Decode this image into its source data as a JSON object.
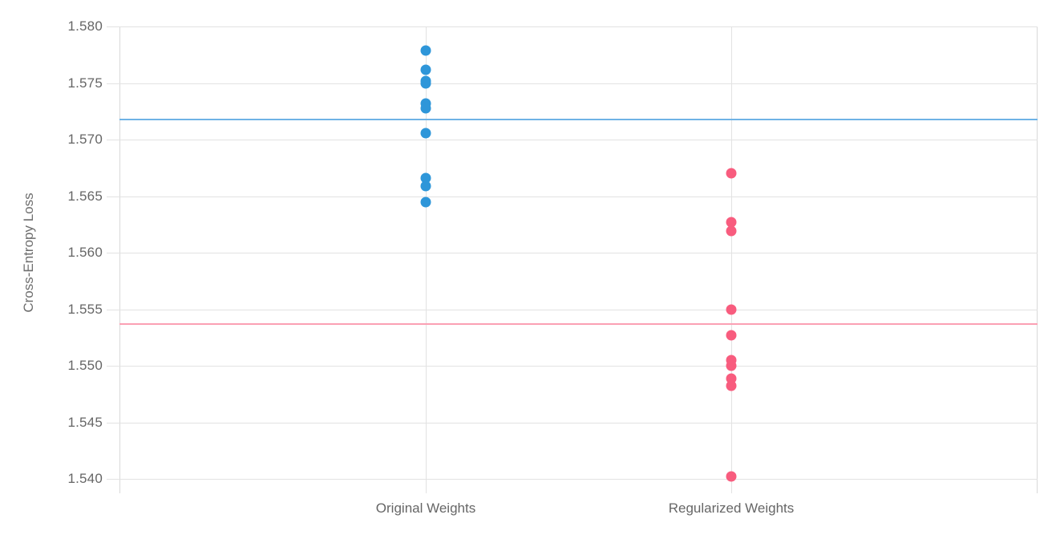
{
  "chart_data": {
    "type": "scatter",
    "subtype": "strip-plot",
    "title": "",
    "xlabel": "",
    "ylabel": "Cross-Entropy Loss",
    "categories": [
      "Original Weights",
      "Regularized Weights"
    ],
    "y_tick_labels": [
      "1.580",
      "1.575",
      "1.570",
      "1.565",
      "1.560",
      "1.555",
      "1.550",
      "1.545",
      "1.540"
    ],
    "y_tick_values": [
      1.58,
      1.575,
      1.57,
      1.565,
      1.56,
      1.555,
      1.55,
      1.545,
      1.54
    ],
    "ylim": [
      1.5387,
      1.58
    ],
    "grid": true,
    "legend_position": "none",
    "series": [
      {
        "name": "Original Weights",
        "color": "#2E96D9",
        "marker": "circle",
        "values": [
          1.5779,
          1.5762,
          1.5752,
          1.575,
          1.5732,
          1.5728,
          1.5706,
          1.5666,
          1.5659,
          1.5645
        ],
        "mean_line": {
          "value": 1.5718,
          "color": "#6FB3E6"
        }
      },
      {
        "name": "Regularized Weights",
        "color": "#F85C7E",
        "marker": "circle",
        "values": [
          1.567,
          1.5627,
          1.5619,
          1.555,
          1.5527,
          1.5505,
          1.55,
          1.5489,
          1.5482,
          1.5402
        ],
        "mean_line": {
          "value": 1.5537,
          "color": "#FBA0B4"
        }
      }
    ]
  },
  "style": {
    "background": "#FFFFFF",
    "grid_color": "#E2E2E2",
    "axis_line_color": "#D9D9D9",
    "tick_label_color": "#666666",
    "axis_title_color": "#6E6E6E"
  }
}
